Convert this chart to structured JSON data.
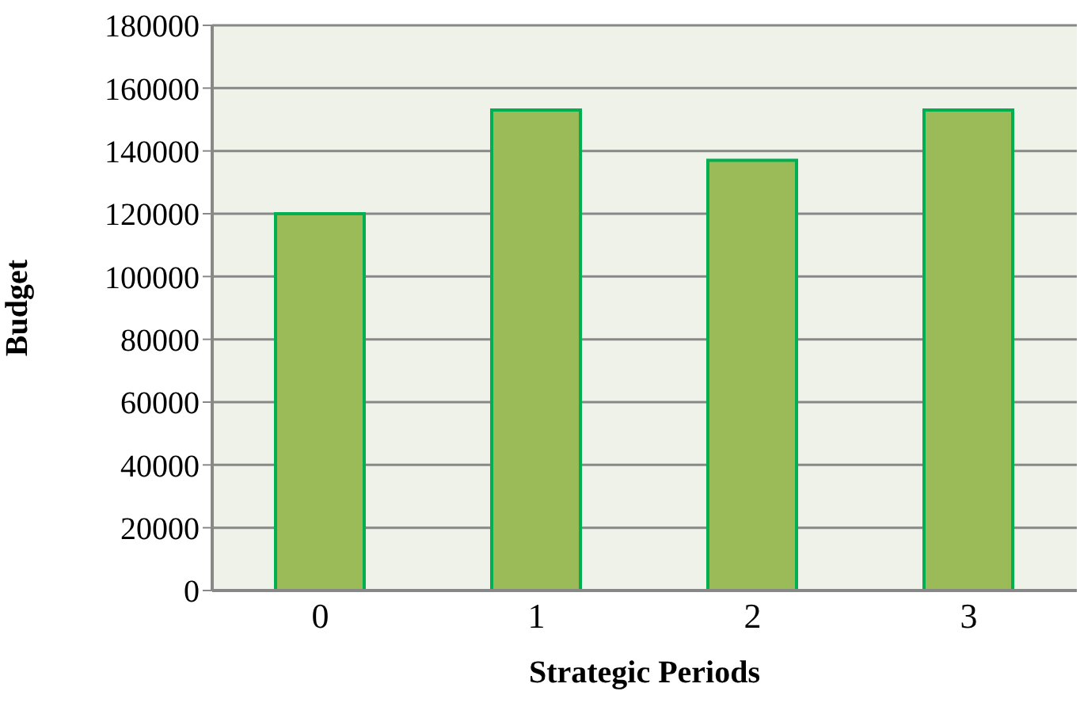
{
  "chart_data": {
    "type": "bar",
    "xlabel": "Strategic Periods",
    "ylabel": "Budget",
    "categories": [
      "0",
      "1",
      "2",
      "3"
    ],
    "values": [
      120000,
      153000,
      137000,
      153000
    ],
    "color": "#9bbb59",
    "ylim": [
      0,
      180000
    ],
    "yticks": [
      0,
      20000,
      40000,
      60000,
      80000,
      100000,
      120000,
      140000,
      160000,
      180000
    ],
    "grid": "y"
  }
}
